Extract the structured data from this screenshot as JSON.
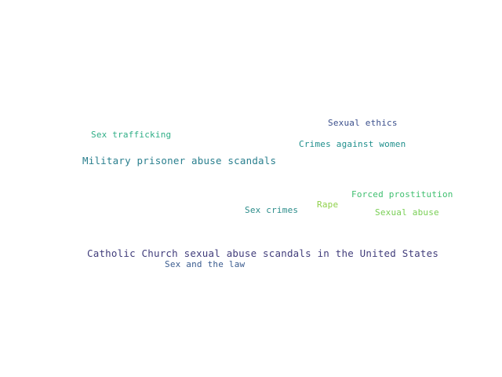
{
  "terms": [
    {
      "id": "sexual-ethics",
      "text": "Sexual ethics",
      "color": "#3b4f8c"
    },
    {
      "id": "sex-trafficking",
      "text": "Sex trafficking",
      "color": "#2fae86"
    },
    {
      "id": "crimes-against-women",
      "text": "Crimes against women",
      "color": "#1f8f8c"
    },
    {
      "id": "military-prisoner-abuse-scandals",
      "text": "Military prisoner abuse scandals",
      "color": "#2a7f8e"
    },
    {
      "id": "forced-prostitution",
      "text": "Forced prostitution",
      "color": "#3fbf6f"
    },
    {
      "id": "rape",
      "text": "Rape",
      "color": "#8fd14a"
    },
    {
      "id": "sex-crimes",
      "text": "Sex crimes",
      "color": "#2b8c8a"
    },
    {
      "id": "sexual-abuse",
      "text": "Sexual abuse",
      "color": "#79cf55"
    },
    {
      "id": "catholic-church-sexual-abuse-scandals-in-the-united-states",
      "text": "Catholic Church sexual abuse scandals in the United States",
      "color": "#413d7b"
    },
    {
      "id": "sex-and-the-law",
      "text": "Sex and the law",
      "color": "#3b5c8f"
    }
  ]
}
